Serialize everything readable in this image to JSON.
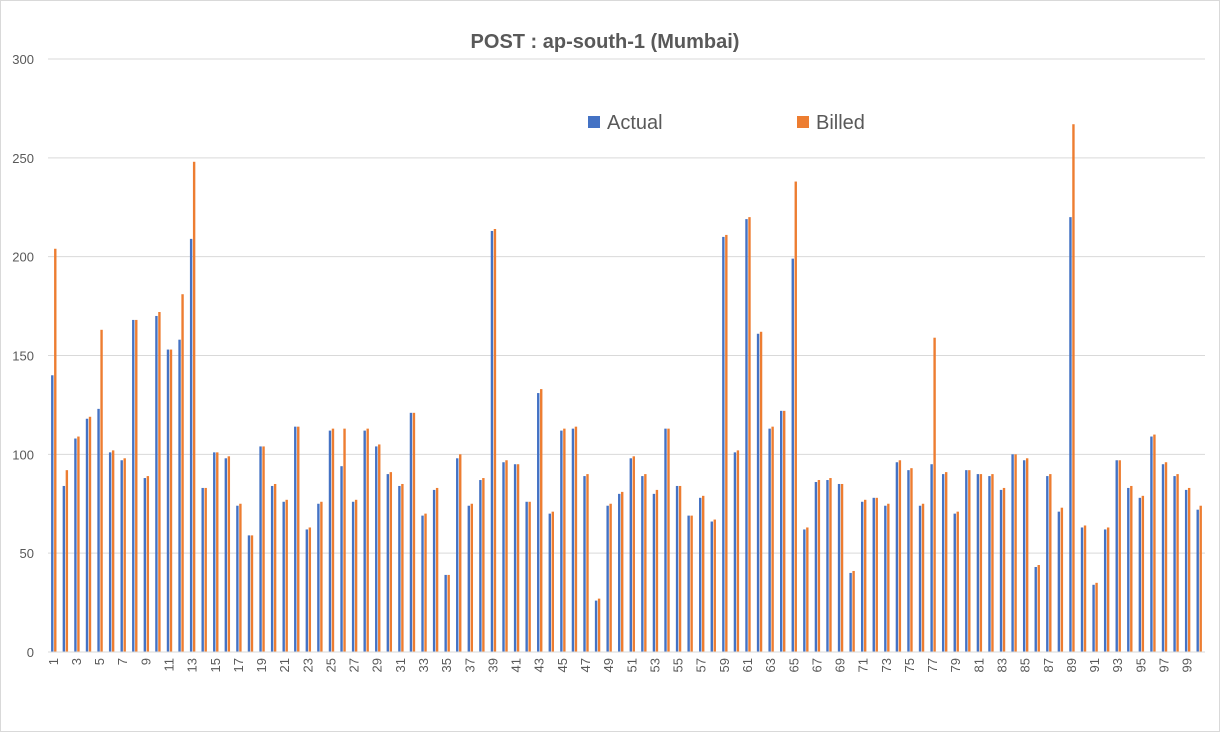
{
  "chart_data": {
    "type": "bar",
    "title": "POST : ap-south-1 (Mumbai)",
    "xlabel": "",
    "ylabel": "",
    "ylim": [
      0,
      300
    ],
    "yticks": [
      0,
      50,
      100,
      150,
      200,
      250,
      300
    ],
    "grid": true,
    "legend_position": "top-right",
    "colors": {
      "Actual": "#4472c4",
      "Billed": "#ed7d31"
    },
    "categories": [
      1,
      2,
      3,
      4,
      5,
      6,
      7,
      8,
      9,
      10,
      11,
      12,
      13,
      14,
      15,
      16,
      17,
      18,
      19,
      20,
      21,
      22,
      23,
      24,
      25,
      26,
      27,
      28,
      29,
      30,
      31,
      32,
      33,
      34,
      35,
      36,
      37,
      38,
      39,
      40,
      41,
      42,
      43,
      44,
      45,
      46,
      47,
      48,
      49,
      50,
      51,
      52,
      53,
      54,
      55,
      56,
      57,
      58,
      59,
      60,
      61,
      62,
      63,
      64,
      65,
      66,
      67,
      68,
      69,
      70,
      71,
      72,
      73,
      74,
      75,
      76,
      77,
      78,
      79,
      80,
      81,
      82,
      83,
      84,
      85,
      86,
      87,
      88,
      89,
      90,
      91,
      92,
      93,
      94,
      95,
      96,
      97,
      98,
      99,
      100
    ],
    "series": [
      {
        "name": "Actual",
        "values": [
          140,
          84,
          108,
          118,
          123,
          101,
          97,
          168,
          88,
          170,
          153,
          158,
          209,
          83,
          101,
          98,
          74,
          59,
          104,
          84,
          76,
          114,
          62,
          75,
          112,
          94,
          76,
          112,
          104,
          90,
          84,
          121,
          69,
          82,
          39,
          98,
          74,
          87,
          213,
          96,
          95,
          76,
          131,
          70,
          112,
          113,
          89,
          26,
          74,
          80,
          98,
          89,
          80,
          113,
          84,
          69,
          78,
          66,
          210,
          101,
          219,
          161,
          113,
          122,
          199,
          62,
          86,
          87,
          85,
          40,
          76,
          78,
          74,
          96,
          92,
          74,
          95,
          90,
          70,
          92,
          90,
          89,
          82,
          100,
          97,
          43,
          89,
          71,
          220,
          63,
          34,
          62,
          97,
          83,
          78,
          109,
          95,
          89,
          82,
          72
        ]
      },
      {
        "name": "Billed",
        "values": [
          204,
          92,
          109,
          119,
          163,
          102,
          98,
          168,
          89,
          172,
          153,
          181,
          248,
          83,
          101,
          99,
          75,
          59,
          104,
          85,
          77,
          114,
          63,
          76,
          113,
          113,
          77,
          113,
          105,
          91,
          85,
          121,
          70,
          83,
          39,
          100,
          75,
          88,
          214,
          97,
          95,
          76,
          133,
          71,
          113,
          114,
          90,
          27,
          75,
          81,
          99,
          90,
          82,
          113,
          84,
          69,
          79,
          67,
          211,
          102,
          220,
          162,
          114,
          122,
          238,
          63,
          87,
          88,
          85,
          41,
          77,
          78,
          75,
          97,
          93,
          75,
          159,
          91,
          71,
          92,
          90,
          90,
          83,
          100,
          98,
          44,
          90,
          73,
          267,
          64,
          35,
          63,
          97,
          84,
          79,
          110,
          96,
          90,
          83,
          74
        ]
      }
    ]
  }
}
